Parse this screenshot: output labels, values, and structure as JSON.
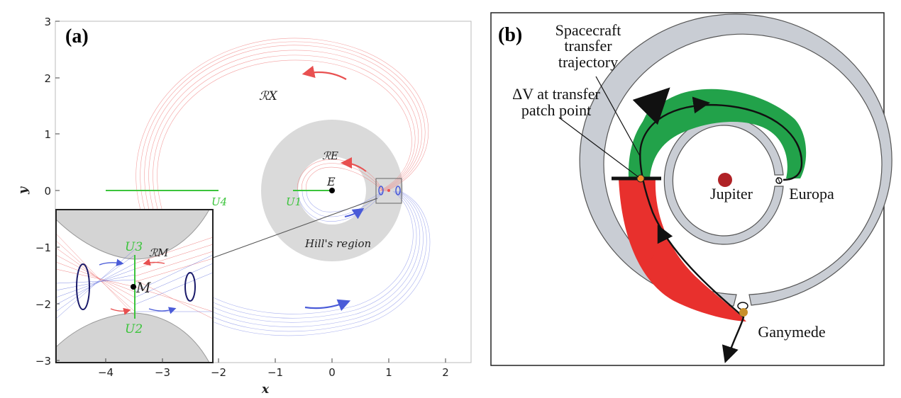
{
  "panel_a": {
    "label": "(a)",
    "xlabel": "x",
    "ylabel": "y",
    "xticks": [
      "−4",
      "−3",
      "−2",
      "−1",
      "0",
      "1",
      "2"
    ],
    "yticks": [
      "3",
      "2",
      "1",
      "0",
      "−1",
      "−2",
      "−3"
    ],
    "region_X": "ℛX",
    "region_E": "ℛE",
    "region_M": "ℛM",
    "point_E": "E",
    "point_M": "M",
    "u1": "U1",
    "u2": "U2",
    "u3": "U3",
    "u4": "U4",
    "hills": "Hill's region",
    "colors": {
      "red": "#e85050",
      "blue": "#4a5bd8",
      "green": "#3cc43c",
      "gray": "#d9d9d9"
    }
  },
  "panel_b": {
    "label": "(b)",
    "spacecraft_line1": "Spacecraft",
    "spacecraft_line2": "transfer",
    "spacecraft_line3": "trajectory",
    "dv_line1": "ΔV at transfer",
    "dv_line2": "patch point",
    "jupiter": "Jupiter",
    "europa": "Europa",
    "ganymede": "Ganymede",
    "colors": {
      "green": "#22a24a",
      "red": "#e8302d",
      "ring": "#c9cdd4",
      "jupiter": "#b02226",
      "orange": "#f08a2a",
      "ganymede": "#c8902a"
    }
  }
}
